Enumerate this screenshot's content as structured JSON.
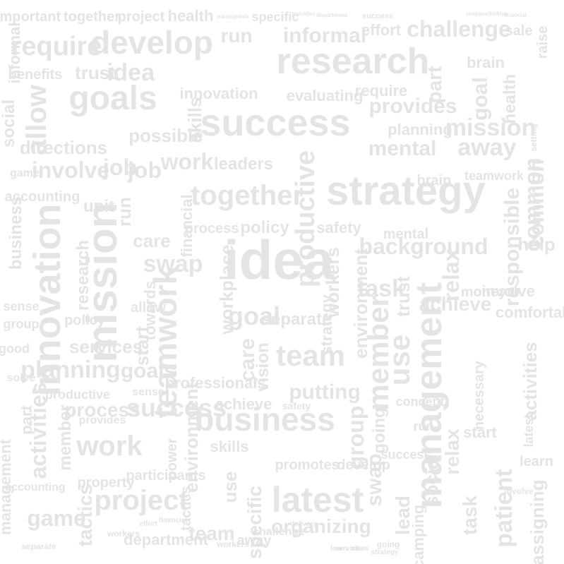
{
  "word_cloud": {
    "color": "#e4e4e4",
    "background": "#ffffff",
    "words": [
      "important",
      "together",
      "project",
      "health",
      "participants",
      "specific",
      "provides",
      "department",
      "success",
      "responsibilities",
      "financial",
      "informal",
      "run",
      "informal",
      "effort",
      "challenge",
      "sale",
      "raise",
      "require",
      "develop",
      "research",
      "brain",
      "health",
      "trust",
      "idea",
      "benefits",
      "part",
      "goal",
      "goals",
      "allow",
      "innovation",
      "evaluating",
      "require",
      "provides",
      "social",
      "success",
      "planning",
      "mission",
      "setting",
      "directions",
      "possible",
      "skills",
      "away",
      "common",
      "game",
      "involve",
      "job",
      "job",
      "work",
      "leaders",
      "mental",
      "teamwork",
      "accounting",
      "together",
      "strategy",
      "brain",
      "common",
      "unit",
      "run",
      "process",
      "policy",
      "productive",
      "safety",
      "mental",
      "background",
      "help",
      "business",
      "care",
      "swap",
      "financial",
      "responsible",
      "relax",
      "innovation",
      "mission",
      "idea",
      "task",
      "involve",
      "research",
      "teamwork",
      "workplace",
      "workers",
      "trust",
      "achieve",
      "money",
      "sense",
      "allow",
      "goal",
      "separate",
      "environment",
      "comfortable",
      "group",
      "policy",
      "towards",
      "care",
      "strategy",
      "member",
      "use",
      "good",
      "services",
      "start",
      "team",
      "vision",
      "management",
      "solve",
      "planning",
      "goals",
      "professionals",
      "putting",
      "activities",
      "productive",
      "sense",
      "success",
      "necessary",
      "activities",
      "process",
      "achieve",
      "safety",
      "concept",
      "latest",
      "part",
      "member",
      "business",
      "group",
      "going",
      "run",
      "start",
      "management",
      "work",
      "provides",
      "environment",
      "skills",
      "relax",
      "social",
      "property",
      "power",
      "participants",
      "promotes",
      "swap",
      "learn",
      "tactics",
      "project",
      "use",
      "specific",
      "latest",
      "develop",
      "success",
      "patient",
      "game",
      "team",
      "tactics",
      "organizing",
      "lead",
      "camping",
      "task",
      "assigning",
      "accounting",
      "department",
      "workers",
      "challenge",
      "away",
      "learn",
      "involve",
      "going",
      "separate",
      "effort",
      "financial",
      "allow",
      "workers",
      "services",
      "delivery",
      "strategy"
    ]
  }
}
